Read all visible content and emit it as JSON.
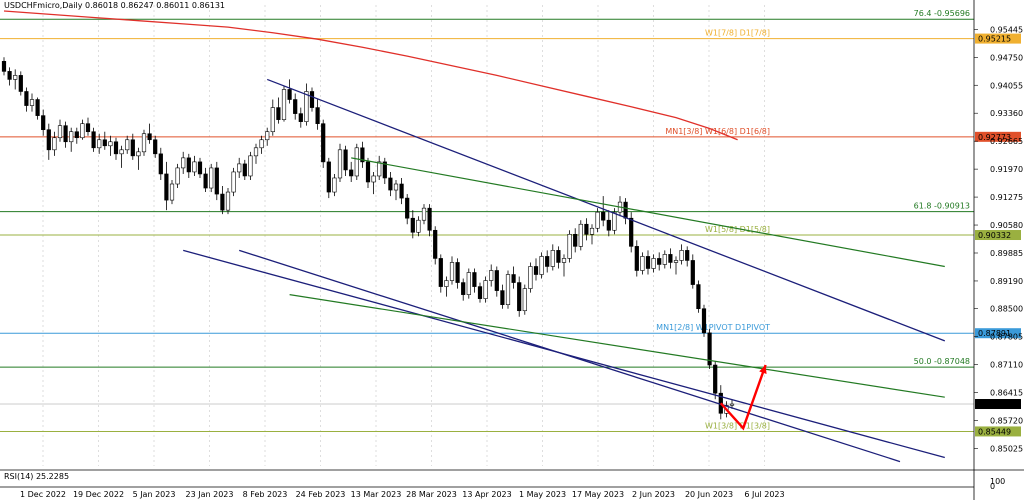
{
  "header": {
    "symbol_info": "USDCHFmicro,Daily  0.86018 0.86247 0.86011 0.86131"
  },
  "colors": {
    "bull": "#000000",
    "bear": "#000000",
    "ma": "#e0302a",
    "channel": "#1c1f7a",
    "trend": "#237a23",
    "current": "#000000",
    "arrow": "#ff0000"
  },
  "chart_data": {
    "type": "candlestick",
    "ylim": [
      0.8459,
      0.9605
    ],
    "x_range": [
      "2022-12-01",
      "2023-07-24"
    ],
    "y_ticks": [
      "0.95445",
      "0.94750",
      "0.94055",
      "0.93360",
      "0.92665",
      "0.91970",
      "0.91275",
      "0.90580",
      "0.89885",
      "0.89190",
      "0.88500",
      "0.87805",
      "0.87110",
      "0.86415",
      "0.85720",
      "0.85025"
    ],
    "x_ticks": [
      "1 Dec 2022",
      "19 Dec 2022",
      "5 Jan 2023",
      "23 Jan 2023",
      "8 Feb 2023",
      "24 Feb 2023",
      "13 Mar 2023",
      "28 Mar 2023",
      "13 Apr 2023",
      "1 May 2023",
      "17 May 2023",
      "2 Jun 2023",
      "20 Jun 2023",
      "6 Jul 2023"
    ],
    "levels": [
      {
        "price": 0.95696,
        "color": "#237a23",
        "text": "76.4 -0.95696",
        "badge": "",
        "badge_color": ""
      },
      {
        "price": 0.95215,
        "color": "#f0b030",
        "text": "W1[7/8] D1[7/8]",
        "badge": "0.95215",
        "badge_color": "#f0b030"
      },
      {
        "price": 0.92773,
        "color": "#e0502a",
        "text": "MN1[3/8] W1[6/8] D1[6/8]",
        "badge": "0.92773",
        "badge_color": "#e0502a"
      },
      {
        "price": 0.90913,
        "color": "#237a23",
        "text": "61.8 -0.90913",
        "badge": "",
        "badge_color": ""
      },
      {
        "price": 0.90332,
        "color": "#9ab040",
        "text": "W1[5/8] D1[5/8]",
        "badge": "0.90332",
        "badge_color": "#9ab040"
      },
      {
        "price": 0.87891,
        "color": "#3a9ad9",
        "text": "MN1[2/8] W1PIVOT D1PIVOT",
        "badge": "0.87891",
        "badge_color": "#3a9ad9"
      },
      {
        "price": 0.87048,
        "color": "#237a23",
        "text": "50.0 -0.87048",
        "badge": "",
        "badge_color": ""
      },
      {
        "price": 0.85449,
        "color": "#9ab040",
        "text": "W1[3/8] D1[3/8]",
        "badge": "0.85449",
        "badge_color": "#9ab040"
      }
    ],
    "current_price": "0.86131",
    "indicator": "RSI(14) 25.2285",
    "rsi_ticks": [
      "100",
      "0"
    ],
    "candles": [
      [
        0.9465,
        0.9475,
        0.943,
        0.944
      ],
      [
        0.944,
        0.945,
        0.9405,
        0.942
      ],
      [
        0.942,
        0.9445,
        0.9395,
        0.943
      ],
      [
        0.943,
        0.944,
        0.938,
        0.939
      ],
      [
        0.939,
        0.94,
        0.934,
        0.9355
      ],
      [
        0.9355,
        0.9385,
        0.934,
        0.937
      ],
      [
        0.937,
        0.9375,
        0.932,
        0.933
      ],
      [
        0.933,
        0.9345,
        0.928,
        0.9295
      ],
      [
        0.9295,
        0.931,
        0.922,
        0.9245
      ],
      [
        0.9245,
        0.929,
        0.923,
        0.9275
      ],
      [
        0.9275,
        0.932,
        0.9265,
        0.9305
      ],
      [
        0.9305,
        0.9315,
        0.925,
        0.9265
      ],
      [
        0.9265,
        0.93,
        0.924,
        0.929
      ],
      [
        0.929,
        0.93,
        0.926,
        0.9275
      ],
      [
        0.9275,
        0.932,
        0.927,
        0.931
      ],
      [
        0.931,
        0.9325,
        0.928,
        0.929
      ],
      [
        0.929,
        0.93,
        0.924,
        0.925
      ],
      [
        0.925,
        0.9285,
        0.9235,
        0.927
      ],
      [
        0.927,
        0.929,
        0.9245,
        0.9255
      ],
      [
        0.9255,
        0.928,
        0.923,
        0.9265
      ],
      [
        0.9265,
        0.9275,
        0.922,
        0.9235
      ],
      [
        0.9235,
        0.9255,
        0.92,
        0.9245
      ],
      [
        0.9245,
        0.928,
        0.9235,
        0.927
      ],
      [
        0.927,
        0.9285,
        0.922,
        0.923
      ],
      [
        0.923,
        0.925,
        0.9195,
        0.924
      ],
      [
        0.924,
        0.9295,
        0.923,
        0.9285
      ],
      [
        0.9285,
        0.931,
        0.926,
        0.927
      ],
      [
        0.927,
        0.928,
        0.9225,
        0.9235
      ],
      [
        0.9235,
        0.925,
        0.917,
        0.9185
      ],
      [
        0.9185,
        0.9215,
        0.9095,
        0.912
      ],
      [
        0.912,
        0.917,
        0.911,
        0.916
      ],
      [
        0.916,
        0.921,
        0.915,
        0.92
      ],
      [
        0.92,
        0.924,
        0.9185,
        0.9225
      ],
      [
        0.9225,
        0.9235,
        0.9175,
        0.919
      ],
      [
        0.919,
        0.923,
        0.918,
        0.9215
      ],
      [
        0.9215,
        0.9225,
        0.9175,
        0.9185
      ],
      [
        0.9185,
        0.92,
        0.914,
        0.915
      ],
      [
        0.915,
        0.921,
        0.914,
        0.92
      ],
      [
        0.92,
        0.9215,
        0.912,
        0.9135
      ],
      [
        0.9135,
        0.9155,
        0.9085,
        0.9095
      ],
      [
        0.9095,
        0.915,
        0.9085,
        0.914
      ],
      [
        0.914,
        0.92,
        0.913,
        0.919
      ],
      [
        0.919,
        0.9225,
        0.9175,
        0.921
      ],
      [
        0.921,
        0.922,
        0.917,
        0.918
      ],
      [
        0.918,
        0.924,
        0.917,
        0.923
      ],
      [
        0.923,
        0.926,
        0.921,
        0.925
      ],
      [
        0.925,
        0.928,
        0.9235,
        0.927
      ],
      [
        0.927,
        0.93,
        0.9255,
        0.929
      ],
      [
        0.929,
        0.937,
        0.928,
        0.935
      ],
      [
        0.935,
        0.9375,
        0.931,
        0.932
      ],
      [
        0.932,
        0.9405,
        0.9315,
        0.9395
      ],
      [
        0.9395,
        0.942,
        0.936,
        0.937
      ],
      [
        0.937,
        0.9385,
        0.932,
        0.9335
      ],
      [
        0.9335,
        0.935,
        0.93,
        0.9315
      ],
      [
        0.9315,
        0.941,
        0.9305,
        0.939
      ],
      [
        0.939,
        0.94,
        0.934,
        0.935
      ],
      [
        0.935,
        0.937,
        0.9295,
        0.931
      ],
      [
        0.931,
        0.932,
        0.92,
        0.9215
      ],
      [
        0.9215,
        0.9225,
        0.9125,
        0.914
      ],
      [
        0.914,
        0.9185,
        0.913,
        0.9175
      ],
      [
        0.9175,
        0.926,
        0.9165,
        0.9245
      ],
      [
        0.9245,
        0.9255,
        0.918,
        0.9195
      ],
      [
        0.9195,
        0.9215,
        0.9165,
        0.918
      ],
      [
        0.918,
        0.926,
        0.917,
        0.925
      ],
      [
        0.925,
        0.9265,
        0.92,
        0.9215
      ],
      [
        0.9215,
        0.9225,
        0.915,
        0.9165
      ],
      [
        0.9165,
        0.919,
        0.9135,
        0.918
      ],
      [
        0.918,
        0.923,
        0.917,
        0.9215
      ],
      [
        0.9215,
        0.9225,
        0.916,
        0.9175
      ],
      [
        0.9175,
        0.919,
        0.913,
        0.9145
      ],
      [
        0.9145,
        0.917,
        0.912,
        0.916
      ],
      [
        0.916,
        0.9175,
        0.911,
        0.9125
      ],
      [
        0.9125,
        0.9135,
        0.906,
        0.9075
      ],
      [
        0.9075,
        0.9095,
        0.9025,
        0.904
      ],
      [
        0.904,
        0.908,
        0.903,
        0.907
      ],
      [
        0.907,
        0.911,
        0.906,
        0.91
      ],
      [
        0.91,
        0.911,
        0.903,
        0.9045
      ],
      [
        0.9045,
        0.9055,
        0.896,
        0.8975
      ],
      [
        0.8975,
        0.8985,
        0.889,
        0.8905
      ],
      [
        0.8905,
        0.893,
        0.888,
        0.892
      ],
      [
        0.892,
        0.898,
        0.891,
        0.8965
      ],
      [
        0.8965,
        0.8975,
        0.89,
        0.8915
      ],
      [
        0.8915,
        0.8925,
        0.887,
        0.8885
      ],
      [
        0.8885,
        0.895,
        0.8875,
        0.894
      ],
      [
        0.894,
        0.895,
        0.889,
        0.8905
      ],
      [
        0.8905,
        0.8915,
        0.8865,
        0.8875
      ],
      [
        0.8875,
        0.893,
        0.8865,
        0.892
      ],
      [
        0.892,
        0.896,
        0.8905,
        0.8945
      ],
      [
        0.8945,
        0.8955,
        0.888,
        0.8895
      ],
      [
        0.8895,
        0.891,
        0.885,
        0.886
      ],
      [
        0.886,
        0.8945,
        0.885,
        0.8935
      ],
      [
        0.8935,
        0.8955,
        0.89,
        0.8915
      ],
      [
        0.8915,
        0.893,
        0.883,
        0.8845
      ],
      [
        0.8845,
        0.891,
        0.8835,
        0.89
      ],
      [
        0.89,
        0.8965,
        0.889,
        0.8955
      ],
      [
        0.8955,
        0.8975,
        0.892,
        0.8935
      ],
      [
        0.8935,
        0.899,
        0.8925,
        0.898
      ],
      [
        0.898,
        0.8995,
        0.894,
        0.8955
      ],
      [
        0.8955,
        0.901,
        0.8945,
        0.8995
      ],
      [
        0.8995,
        0.9005,
        0.895,
        0.8965
      ],
      [
        0.8965,
        0.8985,
        0.893,
        0.8975
      ],
      [
        0.8975,
        0.9045,
        0.8965,
        0.9035
      ],
      [
        0.9035,
        0.905,
        0.899,
        0.9005
      ],
      [
        0.9005,
        0.907,
        0.8995,
        0.906
      ],
      [
        0.906,
        0.9075,
        0.902,
        0.9035
      ],
      [
        0.9035,
        0.906,
        0.901,
        0.905
      ],
      [
        0.905,
        0.91,
        0.904,
        0.909
      ],
      [
        0.909,
        0.913,
        0.9055,
        0.907
      ],
      [
        0.907,
        0.9095,
        0.903,
        0.9045
      ],
      [
        0.9045,
        0.91,
        0.9035,
        0.909
      ],
      [
        0.909,
        0.913,
        0.908,
        0.9115
      ],
      [
        0.9115,
        0.9125,
        0.906,
        0.9075
      ],
      [
        0.9075,
        0.909,
        0.899,
        0.9005
      ],
      [
        0.9005,
        0.902,
        0.893,
        0.8945
      ],
      [
        0.8945,
        0.899,
        0.8935,
        0.898
      ],
      [
        0.898,
        0.8995,
        0.8935,
        0.895
      ],
      [
        0.895,
        0.8985,
        0.894,
        0.8975
      ],
      [
        0.8975,
        0.899,
        0.8945,
        0.896
      ],
      [
        0.896,
        0.8995,
        0.895,
        0.8985
      ],
      [
        0.8985,
        0.9,
        0.895,
        0.8965
      ],
      [
        0.8965,
        0.898,
        0.8935,
        0.897
      ],
      [
        0.897,
        0.901,
        0.896,
        0.8995
      ],
      [
        0.8995,
        0.9005,
        0.8955,
        0.897
      ],
      [
        0.897,
        0.8985,
        0.89,
        0.891
      ],
      [
        0.891,
        0.892,
        0.884,
        0.885
      ],
      [
        0.885,
        0.886,
        0.878,
        0.879
      ],
      [
        0.879,
        0.88,
        0.87,
        0.871
      ],
      [
        0.871,
        0.872,
        0.8625,
        0.864
      ],
      [
        0.864,
        0.866,
        0.8575,
        0.859
      ],
      [
        0.859,
        0.862,
        0.858,
        0.861
      ],
      [
        0.861,
        0.8625,
        0.8601,
        0.8613
      ]
    ],
    "ma": [
      [
        0.959,
        0
      ],
      [
        0.9582,
        8
      ],
      [
        0.9574,
        16
      ],
      [
        0.9566,
        24
      ],
      [
        0.9558,
        32
      ],
      [
        0.955,
        40
      ],
      [
        0.9536,
        48
      ],
      [
        0.952,
        56
      ],
      [
        0.95,
        64
      ],
      [
        0.9478,
        72
      ],
      [
        0.9454,
        80
      ],
      [
        0.943,
        88
      ],
      [
        0.9404,
        96
      ],
      [
        0.9378,
        104
      ],
      [
        0.9352,
        112
      ],
      [
        0.9325,
        120
      ],
      [
        0.9298,
        126
      ],
      [
        0.927,
        131
      ]
    ],
    "channel_lines": [
      {
        "from": [
          47,
          0.942
        ],
        "to": [
          168,
          0.877
        ]
      },
      {
        "from": [
          32,
          0.8995
        ],
        "to": [
          168,
          0.848
        ]
      },
      {
        "from": [
          42,
          0.8995
        ],
        "to": [
          160,
          0.847
        ]
      }
    ],
    "trend_lines": [
      {
        "from": [
          62,
          0.9225
        ],
        "to": [
          168,
          0.8955
        ]
      },
      {
        "from": [
          51,
          0.8885
        ],
        "to": [
          168,
          0.863
        ]
      }
    ],
    "arrow_path": [
      [
        128,
        0.8615
      ],
      [
        132,
        0.8553
      ],
      [
        136,
        0.871
      ]
    ]
  }
}
